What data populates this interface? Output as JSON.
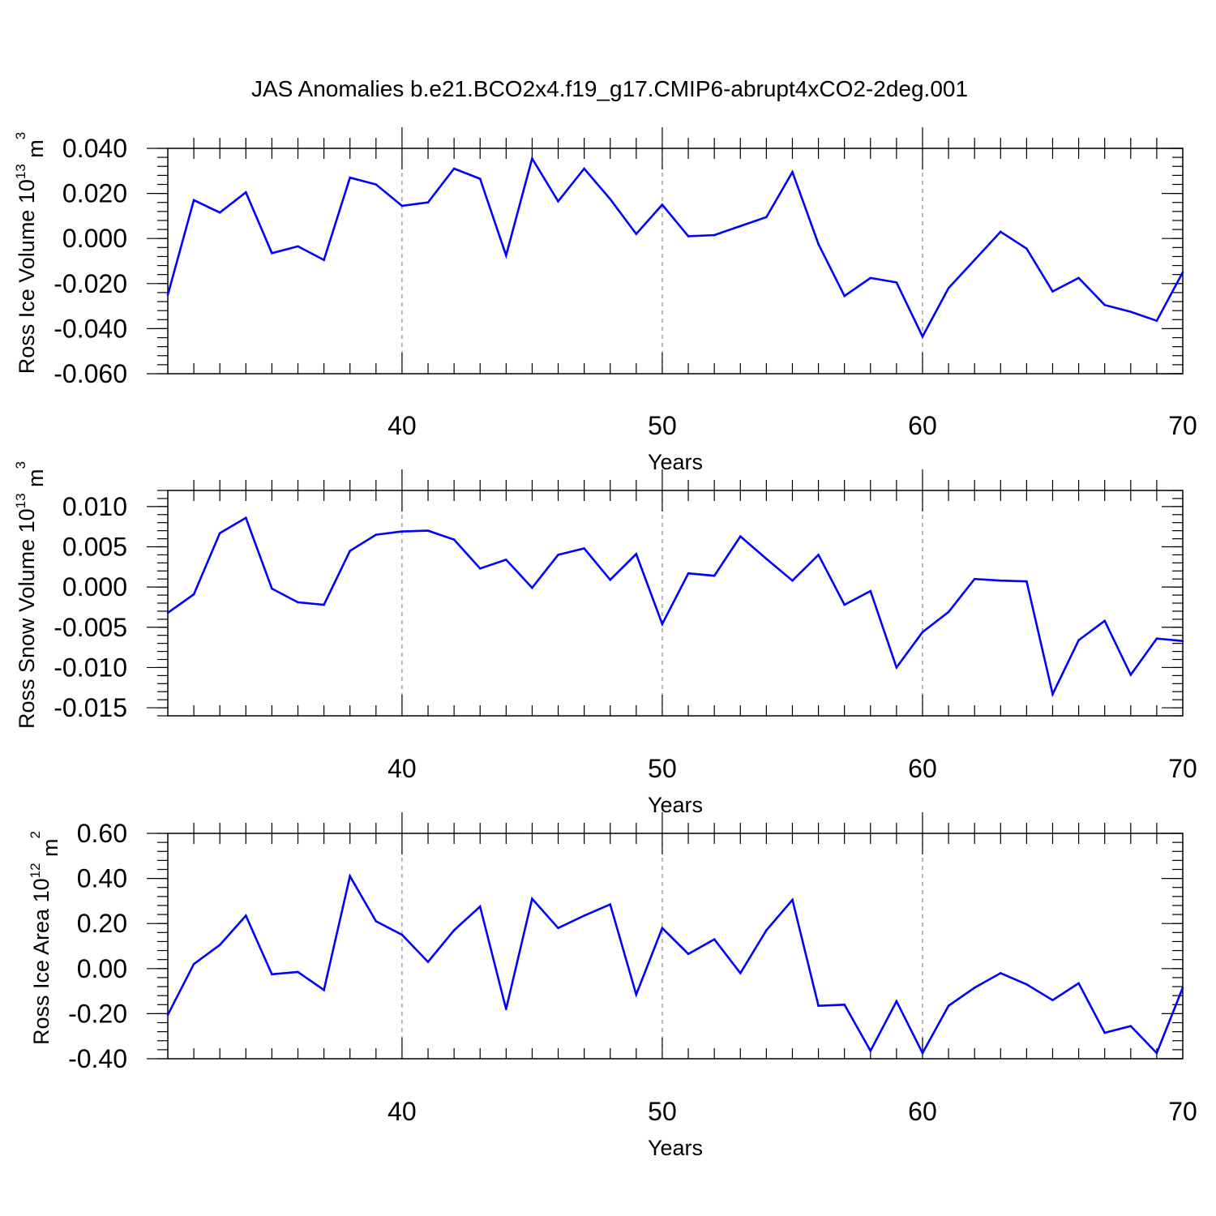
{
  "title": "JAS Anomalies b.e21.BCO2x4.f19_g17.CMIP6-abrupt4xCO2-2deg.001",
  "line_color": "#0000ff",
  "chart_data": [
    {
      "type": "line",
      "ylabel": {
        "main": "Ross Ice Volume 10",
        "exp": "13",
        "unit": " m",
        "unit_exp": "3"
      },
      "xlabel": "Years",
      "xlim": [
        31,
        70
      ],
      "ylim": [
        -0.06,
        0.04
      ],
      "grid": "vertical dashed at major x ticks",
      "x_ticks": [
        40,
        50,
        60,
        70
      ],
      "x_tick_labels": [
        "40",
        "50",
        "60",
        "70"
      ],
      "y_ticks": [
        -0.06,
        -0.04,
        -0.02,
        0.0,
        0.02,
        0.04
      ],
      "y_tick_labels": [
        "-0.060",
        "-0.040",
        "-0.020",
        "0.000",
        "0.020",
        "0.040"
      ],
      "y_minor_step": 0.004,
      "x": [
        31,
        32,
        33,
        34,
        35,
        36,
        37,
        38,
        39,
        40,
        41,
        42,
        43,
        44,
        45,
        46,
        47,
        48,
        49,
        50,
        51,
        52,
        53,
        54,
        55,
        56,
        57,
        58,
        59,
        60,
        61,
        62,
        63,
        64,
        65,
        66,
        67,
        68,
        69,
        70
      ],
      "values": [
        -0.025,
        0.017,
        0.0115,
        0.0205,
        -0.0065,
        -0.0035,
        -0.0095,
        0.027,
        0.024,
        0.0145,
        0.016,
        0.031,
        0.0265,
        -0.0075,
        0.0355,
        0.0165,
        0.031,
        0.0175,
        0.002,
        0.015,
        0.001,
        0.0015,
        0.0055,
        0.0095,
        0.0295,
        -0.0025,
        -0.0255,
        -0.0175,
        -0.0195,
        -0.0435,
        -0.022,
        -0.0095,
        0.003,
        -0.0045,
        -0.0235,
        -0.0175,
        -0.0295,
        -0.0325,
        -0.0365,
        -0.015
      ]
    },
    {
      "type": "line",
      "ylabel": {
        "main": "Ross Snow Volume 10",
        "exp": "13",
        "unit": " m",
        "unit_exp": "3"
      },
      "xlabel": "Years",
      "xlim": [
        31,
        70
      ],
      "ylim": [
        -0.016,
        0.012
      ],
      "grid": "vertical dashed at major x ticks",
      "x_ticks": [
        40,
        50,
        60,
        70
      ],
      "x_tick_labels": [
        "40",
        "50",
        "60",
        "70"
      ],
      "y_ticks": [
        -0.015,
        -0.01,
        -0.005,
        0.0,
        0.005,
        0.01
      ],
      "y_tick_labels": [
        "-0.015",
        "-0.010",
        "-0.005",
        "0.000",
        "0.005",
        "0.010"
      ],
      "y_minor_step": 0.001,
      "x": [
        31,
        32,
        33,
        34,
        35,
        36,
        37,
        38,
        39,
        40,
        41,
        42,
        43,
        44,
        45,
        46,
        47,
        48,
        49,
        50,
        51,
        52,
        53,
        54,
        55,
        56,
        57,
        58,
        59,
        60,
        61,
        62,
        63,
        64,
        65,
        66,
        67,
        68,
        69,
        70
      ],
      "values": [
        -0.0032,
        -0.0009,
        0.0067,
        0.0086,
        -0.0002,
        -0.0019,
        -0.0022,
        0.0045,
        0.0065,
        0.0069,
        0.007,
        0.0059,
        0.0023,
        0.0034,
        -0.0001,
        0.004,
        0.0048,
        0.0009,
        0.0041,
        -0.0046,
        0.0017,
        0.0014,
        0.0063,
        0.0035,
        0.0008,
        0.004,
        -0.0022,
        -0.0005,
        -0.01,
        -0.0056,
        -0.0031,
        0.001,
        0.0008,
        0.0007,
        -0.0133,
        -0.0066,
        -0.0042,
        -0.0109,
        -0.0064,
        -0.0067
      ]
    },
    {
      "type": "line",
      "ylabel": {
        "main": "Ross Ice Area 10",
        "exp": "12",
        "unit": " m",
        "unit_exp": "2"
      },
      "xlabel": "Years",
      "xlim": [
        31,
        70
      ],
      "ylim": [
        -0.4,
        0.6
      ],
      "grid": "vertical dashed at major x ticks",
      "x_ticks": [
        40,
        50,
        60,
        70
      ],
      "x_tick_labels": [
        "40",
        "50",
        "60",
        "70"
      ],
      "y_ticks": [
        -0.4,
        -0.2,
        0.0,
        0.2,
        0.4,
        0.6
      ],
      "y_tick_labels": [
        "-0.40",
        "-0.20",
        "0.00",
        "0.20",
        "0.40",
        "0.60"
      ],
      "y_minor_step": 0.04,
      "x": [
        31,
        32,
        33,
        34,
        35,
        36,
        37,
        38,
        39,
        40,
        41,
        42,
        43,
        44,
        45,
        46,
        47,
        48,
        49,
        50,
        51,
        52,
        53,
        54,
        55,
        56,
        57,
        58,
        59,
        60,
        61,
        62,
        63,
        64,
        65,
        66,
        67,
        68,
        69,
        70
      ],
      "values": [
        -0.205,
        0.02,
        0.105,
        0.235,
        -0.025,
        -0.015,
        -0.095,
        0.41,
        0.21,
        0.15,
        0.03,
        0.17,
        0.275,
        -0.18,
        0.31,
        0.18,
        0.235,
        0.285,
        -0.115,
        0.18,
        0.065,
        0.13,
        -0.02,
        0.17,
        0.305,
        -0.165,
        -0.16,
        -0.365,
        -0.145,
        -0.375,
        -0.165,
        -0.085,
        -0.02,
        -0.07,
        -0.14,
        -0.065,
        -0.285,
        -0.255,
        -0.375,
        -0.085
      ]
    }
  ]
}
